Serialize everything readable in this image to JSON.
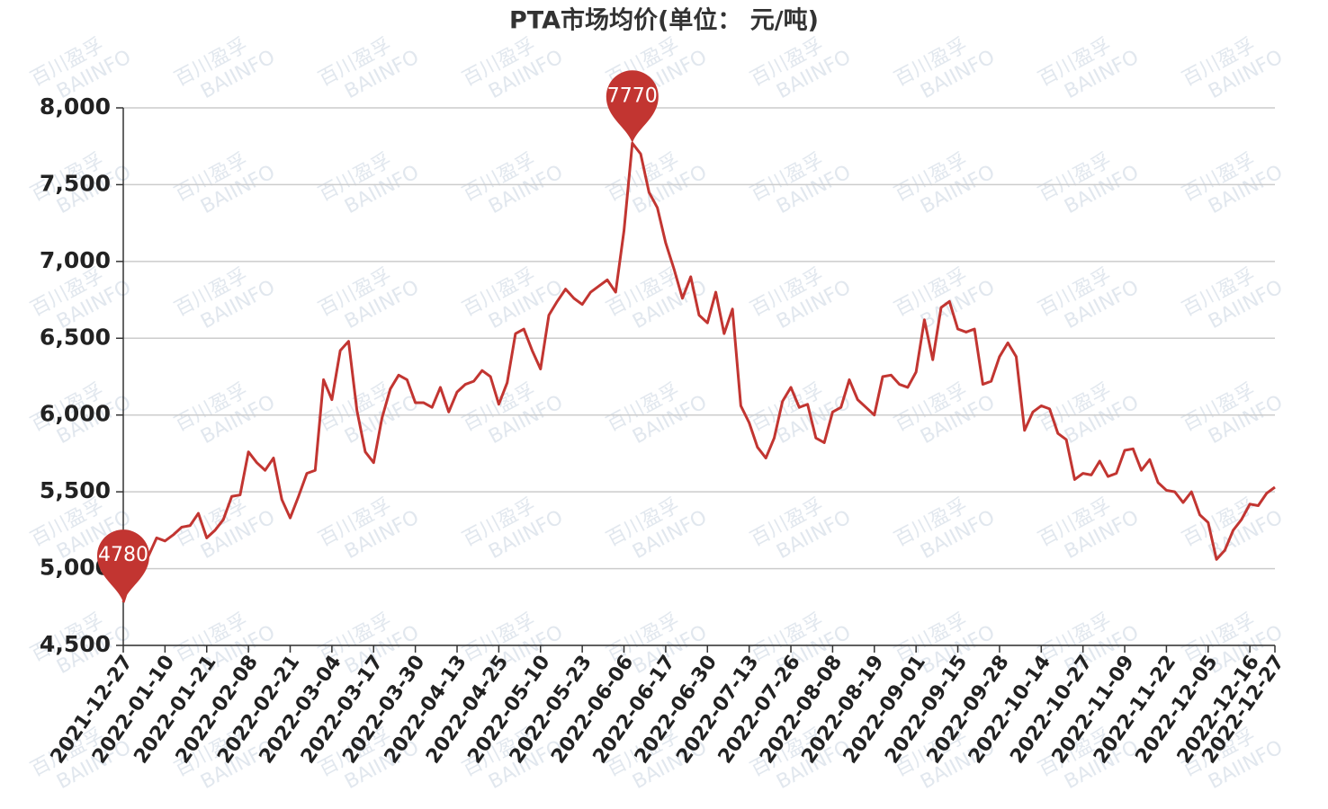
{
  "chart_data": {
    "type": "line",
    "title": "PTA市场均价(单位： 元/吨)",
    "watermark": [
      "百川盈孚",
      "BAIINFO"
    ],
    "categories": [
      "2021-12-27",
      null,
      null,
      null,
      null,
      "2022-01-10",
      null,
      null,
      null,
      null,
      "2022-01-21",
      null,
      null,
      null,
      null,
      "2022-02-08",
      null,
      null,
      null,
      null,
      "2022-02-21",
      null,
      null,
      null,
      null,
      "2022-03-04",
      null,
      null,
      null,
      null,
      "2022-03-17",
      null,
      null,
      null,
      null,
      "2022-03-30",
      null,
      null,
      null,
      null,
      "2022-04-13",
      null,
      null,
      null,
      null,
      "2022-04-25",
      null,
      null,
      null,
      null,
      "2022-05-10",
      null,
      null,
      null,
      null,
      "2022-05-23",
      null,
      null,
      null,
      null,
      "2022-06-06",
      null,
      null,
      null,
      null,
      "2022-06-17",
      null,
      null,
      null,
      null,
      "2022-06-30",
      null,
      null,
      null,
      null,
      "2022-07-13",
      null,
      null,
      null,
      null,
      "2022-07-26",
      null,
      null,
      null,
      null,
      "2022-08-08",
      null,
      null,
      null,
      null,
      "2022-08-19",
      null,
      null,
      null,
      null,
      "2022-09-01",
      null,
      null,
      null,
      null,
      "2022-09-15",
      null,
      null,
      null,
      null,
      "2022-09-28",
      null,
      null,
      null,
      null,
      "2022-10-14",
      null,
      null,
      null,
      null,
      "2022-10-27",
      null,
      null,
      null,
      null,
      "2022-11-09",
      null,
      null,
      null,
      null,
      "2022-11-22",
      null,
      null,
      null,
      null,
      "2022-12-05",
      null,
      null,
      null,
      null,
      "2022-12-16",
      null,
      null,
      "2022-12-27"
    ],
    "series": [
      {
        "name": "PTA",
        "color": "#c23531",
        "values": [
          4780,
          4950,
          5050,
          5080,
          5200,
          5180,
          5220,
          5270,
          5280,
          5360,
          5200,
          5250,
          5320,
          5470,
          5480,
          5760,
          5690,
          5640,
          5720,
          5450,
          5330,
          5470,
          5620,
          5640,
          6230,
          6100,
          6420,
          6480,
          6030,
          5760,
          5690,
          5980,
          6170,
          6260,
          6230,
          6080,
          6080,
          6050,
          6180,
          6020,
          6150,
          6200,
          6220,
          6290,
          6250,
          6070,
          6210,
          6530,
          6560,
          6420,
          6300,
          6650,
          6740,
          6820,
          6760,
          6720,
          6800,
          6840,
          6880,
          6800,
          7200,
          7770,
          7700,
          7450,
          7350,
          7120,
          6950,
          6760,
          6900,
          6650,
          6600,
          6800,
          6530,
          6690,
          6060,
          5950,
          5790,
          5720,
          5850,
          6090,
          6180,
          6050,
          6070,
          5850,
          5820,
          6020,
          6050,
          6230,
          6100,
          6050,
          6000,
          6250,
          6260,
          6200,
          6180,
          6280,
          6620,
          6360,
          6700,
          6740,
          6560,
          6540,
          6560,
          6200,
          6220,
          6380,
          6470,
          6380,
          5900,
          6020,
          6060,
          6040,
          5880,
          5840,
          5580,
          5620,
          5610,
          5700,
          5600,
          5620,
          5770,
          5780,
          5640,
          5710,
          5560,
          5510,
          5500,
          5430,
          5500,
          5350,
          5300,
          5060,
          5120,
          5250,
          5320,
          5420,
          5410,
          5490,
          5530
        ]
      }
    ],
    "ylim": [
      4500,
      8000
    ],
    "yticks": [
      {
        "value": 4500,
        "label": "4,500"
      },
      {
        "value": 5000,
        "label": "5,000"
      },
      {
        "value": 5500,
        "label": "5,500"
      },
      {
        "value": 6000,
        "label": "6,000"
      },
      {
        "value": 6500,
        "label": "6,500"
      },
      {
        "value": 7000,
        "label": "7,000"
      },
      {
        "value": 7500,
        "label": "7,500"
      },
      {
        "value": 8000,
        "label": "8,000"
      }
    ],
    "grid": true
  }
}
